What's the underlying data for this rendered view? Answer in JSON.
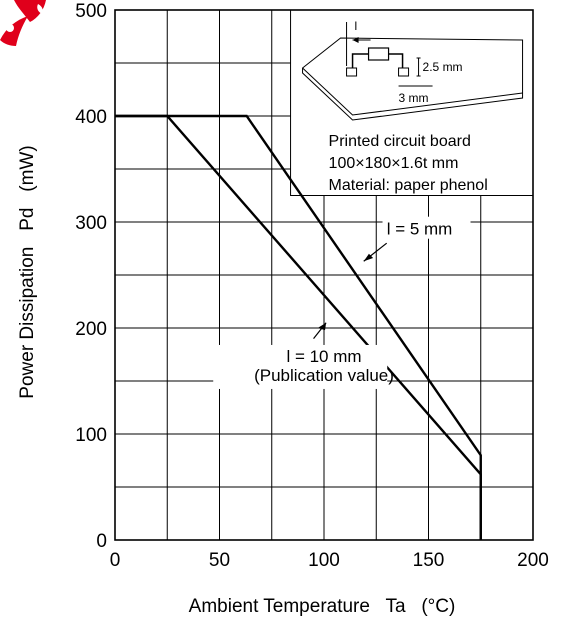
{
  "chart_data": {
    "type": "line",
    "xlabel": "Ambient Temperature   Ta   (°C)",
    "ylabel": "Power Dissipation   Pd   (mW)",
    "xlim": [
      0,
      200
    ],
    "ylim": [
      0,
      500
    ],
    "x_ticks": [
      "0",
      "50",
      "100",
      "150",
      "200"
    ],
    "y_ticks": [
      "0",
      "100",
      "200",
      "300",
      "400",
      "500"
    ],
    "grid": true,
    "series": [
      {
        "name": "l = 5 mm",
        "points": [
          [
            0,
            400
          ],
          [
            63,
            400
          ],
          [
            175,
            80
          ],
          [
            175,
            0
          ]
        ]
      },
      {
        "name": "l = 10 mm (Publication value)",
        "points": [
          [
            0,
            400
          ],
          [
            25,
            400
          ],
          [
            175,
            62
          ],
          [
            175,
            0
          ]
        ]
      }
    ],
    "annotations": {
      "l5": "l = 5 mm",
      "l10_line1": "l = 10 mm",
      "l10_line2": "(Publication value)"
    },
    "inset": {
      "l_label": "l",
      "dim_25": "2.5 mm",
      "dim_3": "3 mm",
      "desc_line1": "Printed circuit board",
      "desc_line2": "100×180×1.6t mm",
      "desc_line3": "Material: paper phenol"
    },
    "watermark_color": "#e0001b"
  }
}
